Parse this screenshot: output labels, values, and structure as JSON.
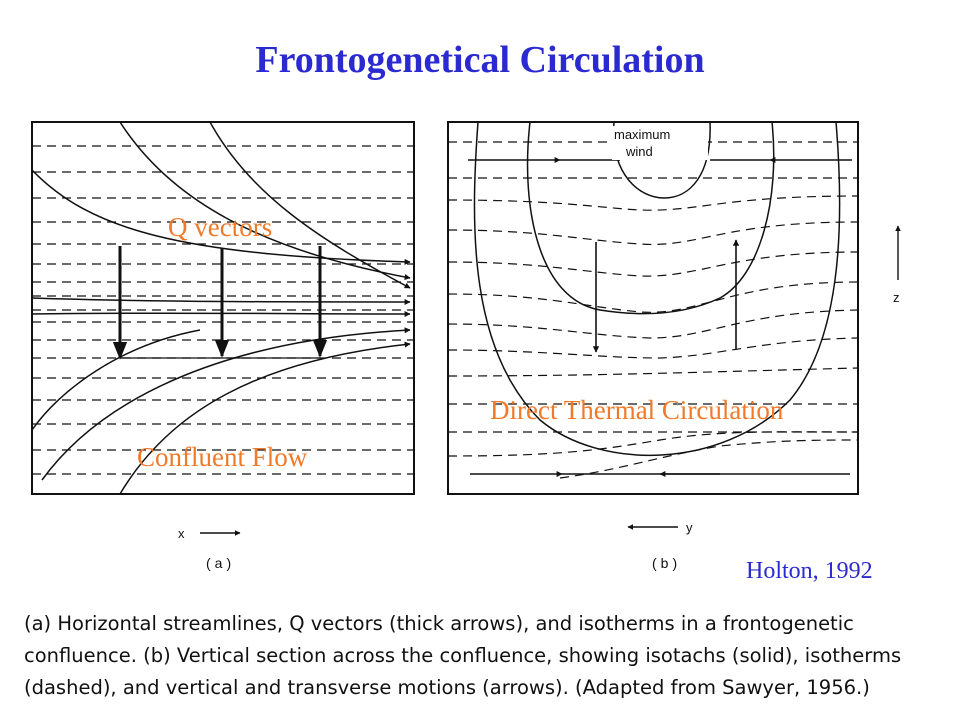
{
  "title": "Frontogenetical Circulation",
  "labels": {
    "q_vectors": "Q vectors",
    "confluent_flow": "Confluent Flow",
    "direct_thermal": "Direct Thermal Circulation",
    "citation": "Holton, 1992",
    "max_wind_line1": "maximum",
    "max_wind_line2": "wind",
    "x_axis": "x",
    "y_axis": "y",
    "z_axis": "z",
    "panel_a": "(a)",
    "panel_b": "(b)"
  },
  "caption": [
    "(a) Horizontal streamlines, Q vectors (thick arrows), and isotherms in a frontogenetic",
    "confluence. (b) Vertical section across the confluence, showing isotachs (solid), isotherms",
    "(dashed), and vertical and transverse motions (arrows). (Adapted from Sawyer, 1956.)"
  ]
}
